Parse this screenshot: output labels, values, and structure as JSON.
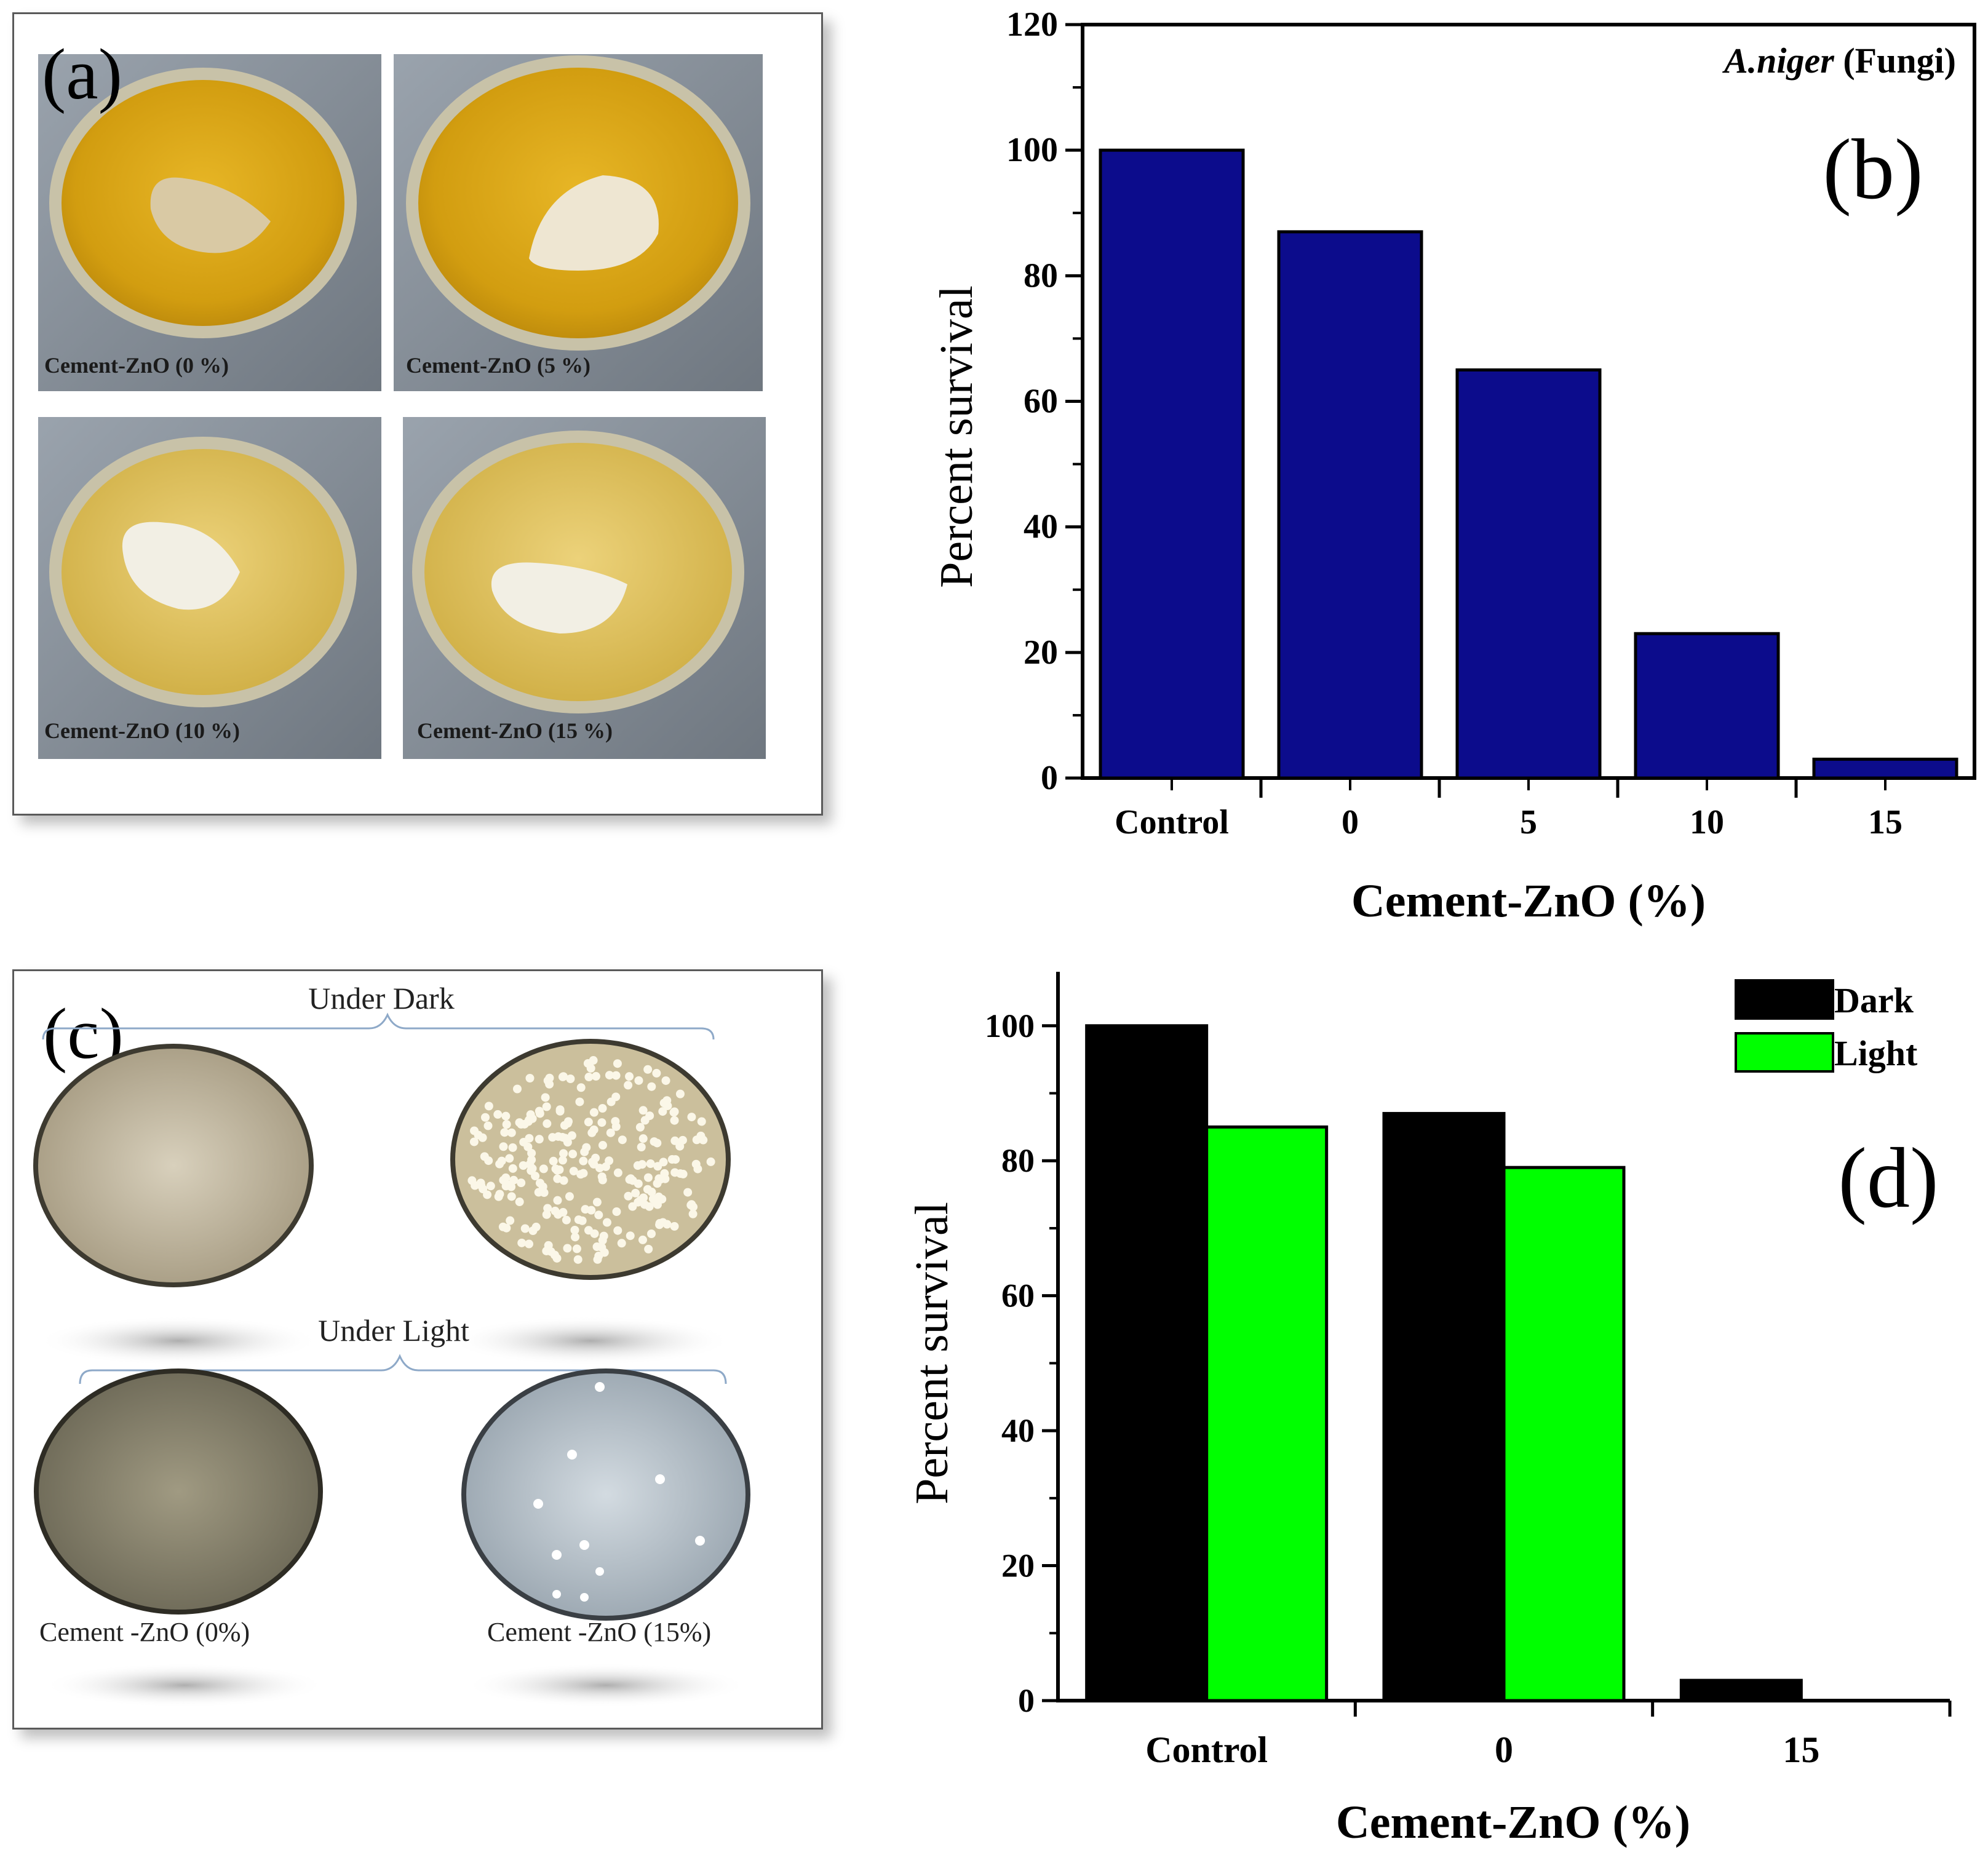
{
  "panel_a": {
    "label": "(a)",
    "dishes": [
      {
        "caption": "Cement-ZnO (0 %)"
      },
      {
        "caption": "Cement-ZnO (5 %)"
      },
      {
        "caption": "Cement-ZnO (10 %)"
      },
      {
        "caption": "Cement-ZnO (15 %)"
      }
    ]
  },
  "panel_c": {
    "label": "(c)",
    "dark_heading": "Under Dark",
    "light_heading": "Under Light",
    "caption_left": "Cement -ZnO (0%)",
    "caption_right": "Cement -ZnO (15%)"
  },
  "colors": {
    "bar_b": "#0c0c8c",
    "dark": "#000000",
    "light": "#00ff00",
    "agar": "#d9a514"
  },
  "chart_data": [
    {
      "id": "b",
      "type": "bar",
      "panel_label": "(b)",
      "annotation_italic": "A.niger",
      "annotation_rest": " (Fungi)",
      "categories": [
        "Control",
        "0",
        "5",
        "10",
        "15"
      ],
      "values": [
        100,
        87,
        65,
        23,
        3
      ],
      "ylim": [
        0,
        120
      ],
      "yticks": [
        0,
        20,
        40,
        60,
        80,
        100,
        120
      ],
      "xlabel": "Cement-ZnO (%)",
      "ylabel": "Percent survival"
    },
    {
      "id": "d",
      "type": "bar",
      "panel_label": "(d)",
      "categories": [
        "Control",
        "0",
        "15"
      ],
      "series": [
        {
          "name": "Dark",
          "values": [
            100,
            87,
            3
          ]
        },
        {
          "name": "Light",
          "values": [
            85,
            79,
            0
          ]
        }
      ],
      "ylim": [
        0,
        108
      ],
      "yticks": [
        0,
        20,
        40,
        60,
        80,
        100
      ],
      "xlabel": "Cement-ZnO (%)",
      "ylabel": "Percent survival",
      "legend": "top-right"
    }
  ]
}
